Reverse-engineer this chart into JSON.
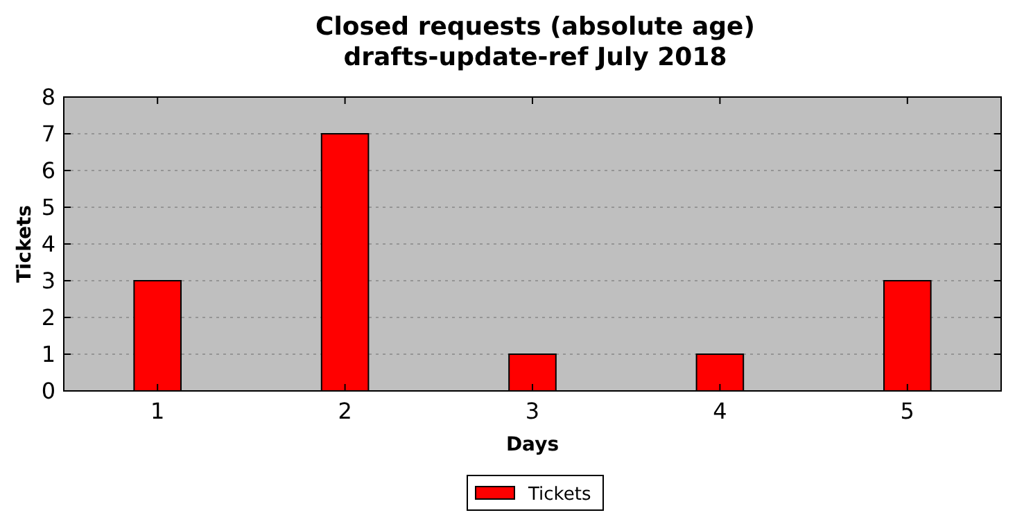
{
  "chart_data": {
    "type": "bar",
    "title": "Closed requests (absolute age)",
    "subtitle": "drafts-update-ref July 2018",
    "xlabel": "Days",
    "ylabel": "Tickets",
    "categories": [
      "1",
      "2",
      "3",
      "4",
      "5"
    ],
    "series": [
      {
        "name": "Tickets",
        "color": "#ff0000",
        "values": [
          3,
          7,
          1,
          1,
          3
        ]
      }
    ],
    "ylim": [
      0,
      8
    ],
    "yticks": [
      0,
      1,
      2,
      3,
      4,
      5,
      6,
      7,
      8
    ],
    "grid": "y",
    "legend": "bottom"
  }
}
